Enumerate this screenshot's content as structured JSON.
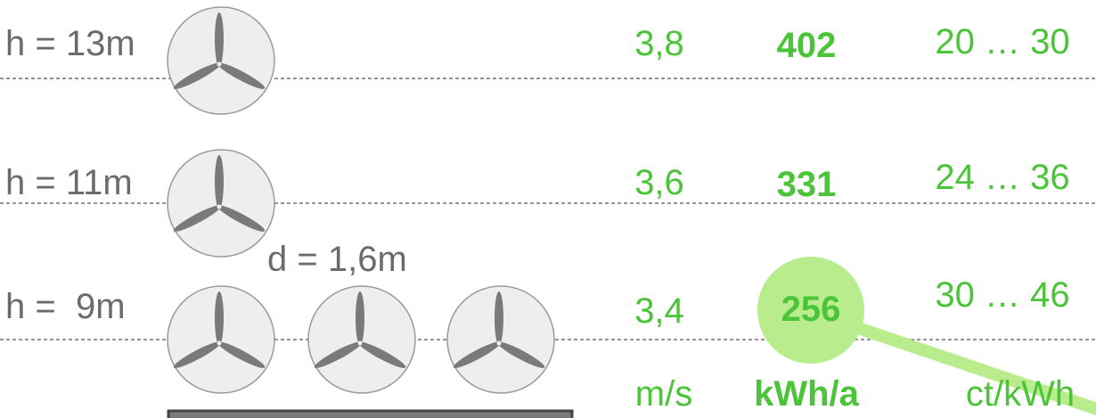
{
  "rows": [
    {
      "height": "h = 13m",
      "speed": "3,8",
      "energy": "402",
      "cost": "20 … 30"
    },
    {
      "height": "h = 11m",
      "speed": "3,6",
      "energy": "331",
      "cost": "24 … 36"
    },
    {
      "height": "h =  9m",
      "speed": "3,4",
      "energy": "256",
      "cost": "30 … 46"
    }
  ],
  "diameter": "d = 1,6m",
  "units": [
    "m/s",
    "kWh/a",
    "ct/kWh"
  ]
}
